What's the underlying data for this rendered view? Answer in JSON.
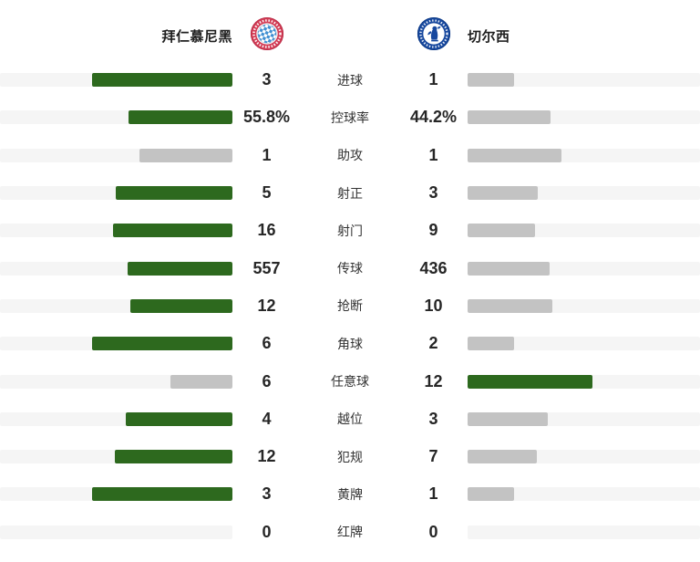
{
  "header": {
    "home_team": "拜仁慕尼黑",
    "away_team": "切尔西",
    "home_logo": "bayern-munich-crest",
    "away_logo": "chelsea-crest"
  },
  "colors": {
    "win_bar": "#2d691e",
    "neutral_bar": "#c3c3c3",
    "track": "#f5f5f5",
    "bayern_red": "#d23c55",
    "chelsea_blue": "#17489e"
  },
  "stats": [
    {
      "label": "进球",
      "home": "3",
      "away": "1",
      "home_val": 3,
      "away_val": 1
    },
    {
      "label": "控球率",
      "home": "55.8%",
      "away": "44.2%",
      "home_val": 55.8,
      "away_val": 44.2
    },
    {
      "label": "助攻",
      "home": "1",
      "away": "1",
      "home_val": 1,
      "away_val": 1
    },
    {
      "label": "射正",
      "home": "5",
      "away": "3",
      "home_val": 5,
      "away_val": 3
    },
    {
      "label": "射门",
      "home": "16",
      "away": "9",
      "home_val": 16,
      "away_val": 9
    },
    {
      "label": "传球",
      "home": "557",
      "away": "436",
      "home_val": 557,
      "away_val": 436
    },
    {
      "label": "抢断",
      "home": "12",
      "away": "10",
      "home_val": 12,
      "away_val": 10
    },
    {
      "label": "角球",
      "home": "6",
      "away": "2",
      "home_val": 6,
      "away_val": 2
    },
    {
      "label": "任意球",
      "home": "6",
      "away": "12",
      "home_val": 6,
      "away_val": 12
    },
    {
      "label": "越位",
      "home": "4",
      "away": "3",
      "home_val": 4,
      "away_val": 3
    },
    {
      "label": "犯规",
      "home": "12",
      "away": "7",
      "home_val": 12,
      "away_val": 7
    },
    {
      "label": "黄牌",
      "home": "3",
      "away": "1",
      "home_val": 3,
      "away_val": 1
    },
    {
      "label": "红牌",
      "home": "0",
      "away": "0",
      "home_val": 0,
      "away_val": 0
    }
  ],
  "chart_data": {
    "type": "bar",
    "subtype": "mirrored-horizontal-comparison",
    "title": "拜仁慕尼黑 vs 切尔西",
    "categories": [
      "进球",
      "控球率",
      "助攻",
      "射正",
      "射门",
      "传球",
      "抢断",
      "角球",
      "任意球",
      "越位",
      "犯规",
      "黄牌",
      "红牌"
    ],
    "series": [
      {
        "name": "拜仁慕尼黑",
        "values": [
          3,
          55.8,
          1,
          5,
          16,
          557,
          12,
          6,
          6,
          4,
          12,
          3,
          0
        ]
      },
      {
        "name": "切尔西",
        "values": [
          1,
          44.2,
          1,
          3,
          9,
          436,
          10,
          2,
          12,
          3,
          7,
          1,
          0
        ]
      }
    ],
    "value_display": {
      "拜仁慕尼黑": [
        "3",
        "55.8%",
        "1",
        "5",
        "16",
        "557",
        "12",
        "6",
        "6",
        "4",
        "12",
        "3",
        "0"
      ],
      "切尔西": [
        "1",
        "44.2%",
        "1",
        "3",
        "9",
        "436",
        "10",
        "2",
        "12",
        "3",
        "7",
        "1",
        "0"
      ]
    },
    "bar_rule": "bar length proportional to value share of row total; higher value colored green, other gray; ties both gray; zero values no bar",
    "legend_position": "top (team names with club crests)",
    "grid": false
  }
}
